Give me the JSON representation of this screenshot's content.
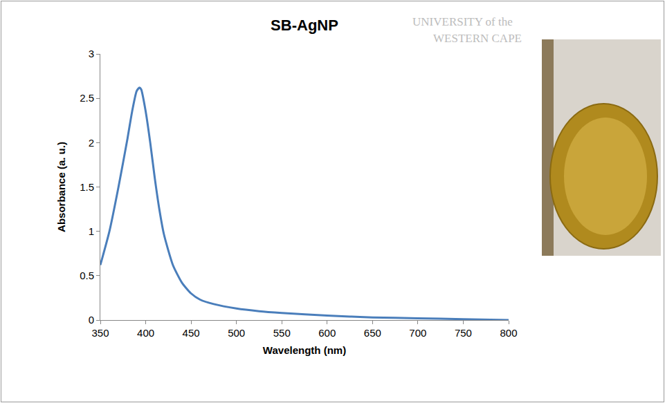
{
  "chart_data": {
    "type": "line",
    "title": "SB-AgNP",
    "x_label": "Wavelength (nm)",
    "y_label": "Absorbance (a. u.)",
    "x": [
      350,
      360,
      370,
      380,
      385,
      390,
      393,
      395,
      400,
      405,
      410,
      415,
      420,
      430,
      440,
      450,
      460,
      475,
      500,
      525,
      550,
      600,
      650,
      700,
      750,
      800
    ],
    "values": [
      0.62,
      1.0,
      1.5,
      2.05,
      2.35,
      2.58,
      2.62,
      2.6,
      2.35,
      2.0,
      1.6,
      1.25,
      0.97,
      0.62,
      0.42,
      0.3,
      0.23,
      0.18,
      0.13,
      0.1,
      0.08,
      0.05,
      0.03,
      0.02,
      0.01,
      0.0
    ],
    "color": "#4a7ebb",
    "xlim": [
      350,
      800
    ],
    "xticks": [
      350,
      400,
      450,
      500,
      550,
      600,
      650,
      700,
      750,
      800
    ],
    "ylim": [
      0,
      3
    ],
    "yticks": [
      0,
      0.5,
      1,
      1.5,
      2,
      2.5,
      3
    ],
    "grid": false,
    "annotations": [
      "UNIVERSITY of the",
      "WESTERN CAPE"
    ]
  }
}
